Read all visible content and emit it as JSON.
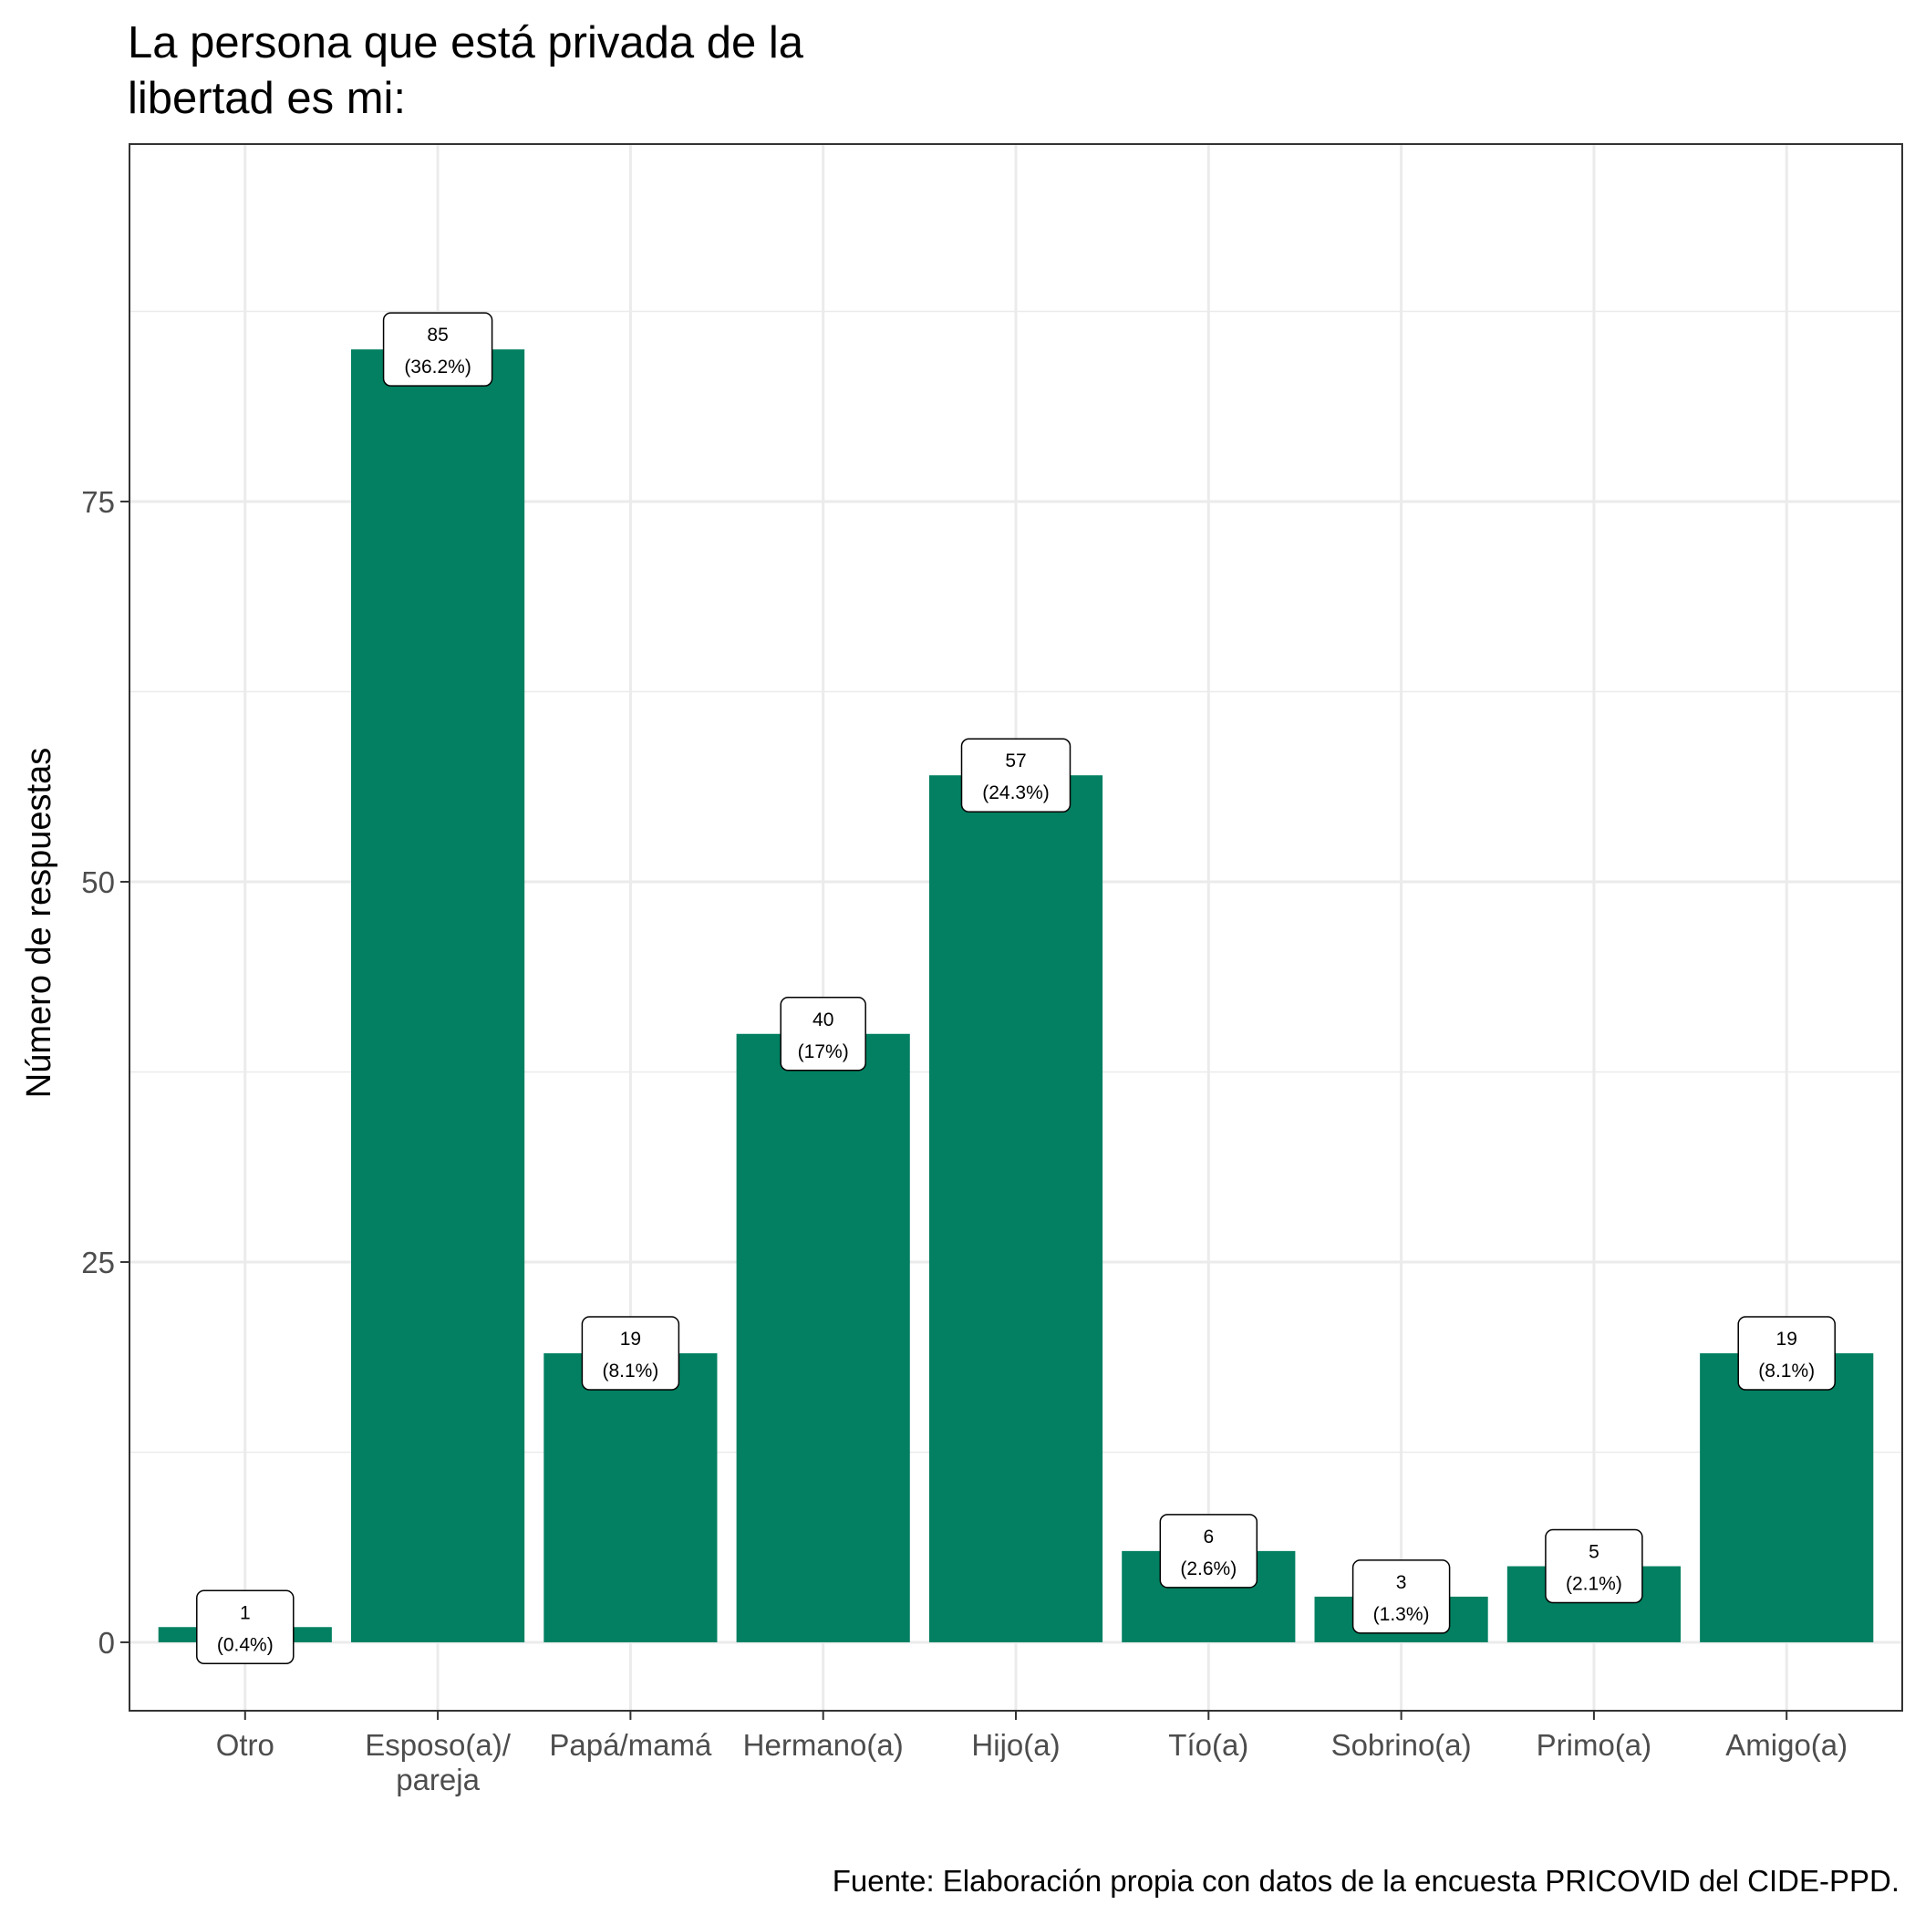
{
  "chart_data": {
    "type": "bar",
    "title": [
      "La persona que está privada de la",
      "libertad es mi:"
    ],
    "ylabel": "Número de respuestas",
    "xlabel": "",
    "caption": "Fuente: Elaboración propia con datos de la encuesta PRICOVID del CIDE-PPD.",
    "categories": [
      [
        "Otro"
      ],
      [
        "Esposo(a)/",
        "pareja"
      ],
      [
        "Papá/mamá"
      ],
      [
        "Hermano(a)"
      ],
      [
        "Hijo(a)"
      ],
      [
        "Tío(a)"
      ],
      [
        "Sobrino(a)"
      ],
      [
        "Primo(a)"
      ],
      [
        "Amigo(a)"
      ]
    ],
    "values": [
      1,
      85,
      19,
      40,
      57,
      6,
      3,
      5,
      19
    ],
    "percent_labels": [
      "(0.4%)",
      "(36.2%)",
      "(8.1%)",
      "(17%)",
      "(24.3%)",
      "(2.6%)",
      "(1.3%)",
      "(2.1%)",
      "(8.1%)"
    ],
    "ylim": [
      -4.5,
      98.5
    ],
    "yticks": [
      0,
      25,
      50,
      75
    ],
    "grid": true,
    "bar_color": "#028061",
    "grid_color": "#ebebeb"
  }
}
